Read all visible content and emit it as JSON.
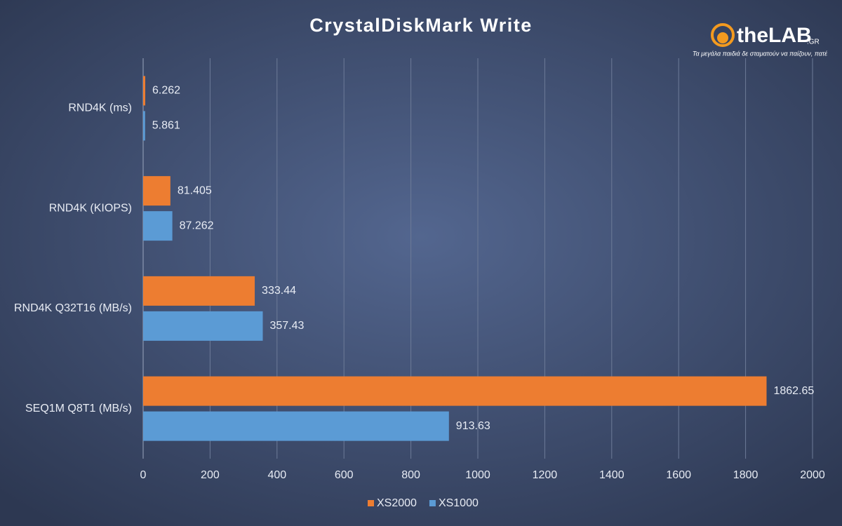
{
  "chart_data": {
    "type": "hbar",
    "title": "CrystalDiskMark  Write",
    "categories": [
      "RND4K (ms)",
      "RND4K (KIOPS)",
      "RND4K Q32T16 (MB/s)",
      "SEQ1M Q8T1 (MB/s)"
    ],
    "series": [
      {
        "name": "XS2000",
        "color": "#ed7d31",
        "values": [
          6.262,
          81.405,
          333.44,
          1862.65
        ]
      },
      {
        "name": "XS1000",
        "color": "#5b9bd5",
        "values": [
          5.861,
          87.262,
          357.43,
          913.63
        ]
      }
    ],
    "xlim": [
      0,
      2000
    ],
    "xticks": [
      0,
      200,
      400,
      600,
      800,
      1000,
      1200,
      1400,
      1600,
      1800,
      2000
    ],
    "grid": true,
    "legend": "bottom"
  },
  "logo": {
    "name": "theLAB",
    "domain": ".GR",
    "tagline": "Τα μεγάλα παιδιά δε σταματούν να παίζουν, πατέ"
  }
}
